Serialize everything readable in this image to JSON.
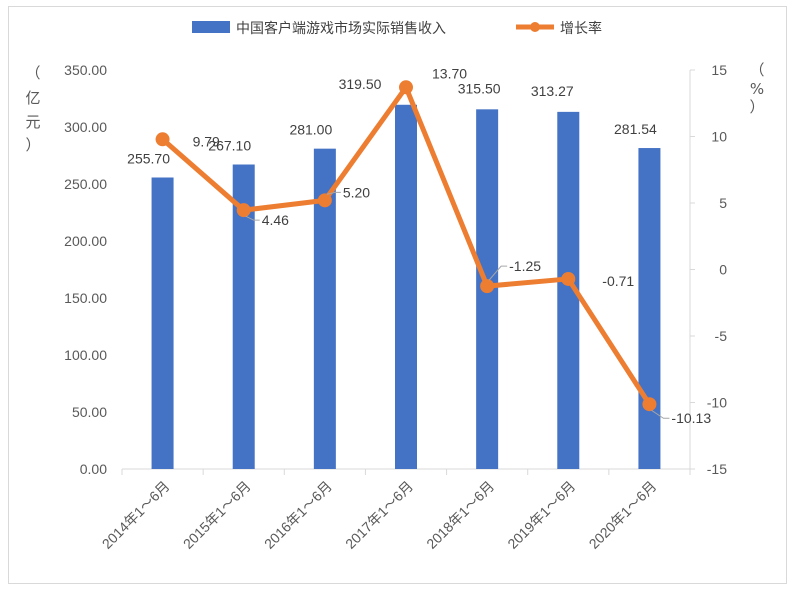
{
  "chart_data": {
    "type": "bar+line",
    "categories": [
      "2014年1～6月",
      "2015年1～6月",
      "2016年1～6月",
      "2017年1～6月",
      "2018年1～6月",
      "2019年1～6月",
      "2020年1～6月"
    ],
    "series": [
      {
        "name": "中国客户端游戏市场实际销售收入",
        "type": "bar",
        "axis": "left",
        "values": [
          255.7,
          267.1,
          281.0,
          319.5,
          315.5,
          313.27,
          281.54
        ],
        "labels": [
          "255.70",
          "267.10",
          "281.00",
          "319.50",
          "315.50",
          "313.27",
          "281.54"
        ]
      },
      {
        "name": "增长率",
        "type": "line",
        "axis": "right",
        "values": [
          9.79,
          4.46,
          5.2,
          13.7,
          -1.25,
          -0.71,
          -10.13
        ],
        "labels": [
          "9.79",
          "4.46",
          "5.20",
          "13.70",
          "-1.25",
          "-0.71",
          "-10.13"
        ]
      }
    ],
    "y_left": {
      "label_chars": [
        "（",
        "亿",
        "元",
        "）"
      ],
      "ylim": [
        0,
        350
      ],
      "ticks": [
        "0.00",
        "50.00",
        "100.00",
        "150.00",
        "200.00",
        "250.00",
        "300.00",
        "350.00"
      ]
    },
    "y_right": {
      "label_chars": [
        "（",
        "%",
        "）"
      ],
      "ylim": [
        -15,
        15
      ],
      "ticks": [
        "-15",
        "-10",
        "-5",
        "0",
        "5",
        "10",
        "15"
      ]
    },
    "legend_position": "top",
    "grid": false,
    "colors": {
      "bar": "#4472C4",
      "line": "#ED7D31",
      "axis": "#d9d9d9"
    }
  }
}
